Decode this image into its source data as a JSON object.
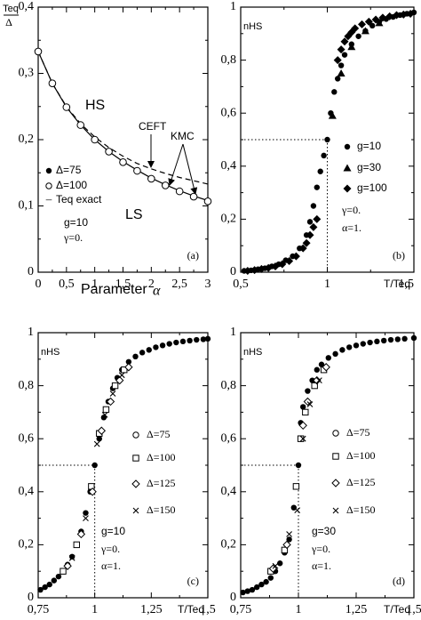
{
  "chart_data": [
    {
      "id": "a",
      "type": "line",
      "panel_letter": "(a)",
      "ylabel": "Teq/Δ",
      "ylabel_num": "Teq",
      "ylabel_den": "Δ",
      "xlabel": "Parameter α",
      "xlabel_text": "Parameter",
      "xlabel_sym": "α",
      "xlim": [
        0,
        3
      ],
      "ylim": [
        0,
        0.4
      ],
      "xticks": [
        0,
        0.5,
        1,
        1.5,
        2,
        2.5,
        3
      ],
      "xtick_labels": [
        "0",
        "0,5",
        "1",
        "1,5",
        "2",
        "2,5",
        "3"
      ],
      "yticks": [
        0,
        0.1,
        0.2,
        0.3,
        0.4
      ],
      "ytick_labels": [
        "0",
        "0,1",
        "0,2",
        "0,3",
        "0,4"
      ],
      "region_labels": [
        "HS",
        "LS"
      ],
      "annotations": [
        "CEFT",
        "KMC"
      ],
      "params": [
        "g=10",
        "γ=0."
      ],
      "legend": [
        {
          "symbol": "filled-circle",
          "label": "Δ=75"
        },
        {
          "symbol": "open-circle",
          "label": "Δ=100"
        },
        {
          "symbol": "dash",
          "label": "Teq exact"
        }
      ],
      "series": [
        {
          "name": "Teq exact",
          "style": "dashed",
          "x": [
            0,
            0.25,
            0.5,
            0.75,
            1.0,
            1.25,
            1.5,
            1.75,
            2.0,
            2.25,
            2.5,
            2.75,
            3.0
          ],
          "y": [
            0.333,
            0.285,
            0.25,
            0.224,
            0.204,
            0.188,
            0.175,
            0.164,
            0.156,
            0.149,
            0.143,
            0.138,
            0.133
          ]
        },
        {
          "name": "CEFT",
          "style": "solid",
          "x": [
            0,
            0.25,
            0.5,
            0.75,
            1.0,
            1.25,
            1.5,
            1.75,
            2.0,
            2.25,
            2.5,
            2.75,
            3.0
          ],
          "y": [
            0.333,
            0.285,
            0.249,
            0.222,
            0.2,
            0.182,
            0.167,
            0.154,
            0.142,
            0.132,
            0.123,
            0.115,
            0.108
          ]
        },
        {
          "name": "Δ=75",
          "marker": "filled-circle",
          "x": [
            0,
            0.25,
            0.5,
            0.75,
            1.0,
            1.25,
            1.5,
            1.75,
            2.0,
            2.25,
            2.5,
            2.75,
            3.0
          ],
          "y": [
            0.333,
            0.285,
            0.249,
            0.222,
            0.2,
            0.182,
            0.166,
            0.153,
            0.141,
            0.131,
            0.122,
            0.114,
            0.107
          ]
        },
        {
          "name": "Δ=100",
          "marker": "open-circle",
          "x": [
            0,
            0.25,
            0.5,
            0.75,
            1.0,
            1.25,
            1.5,
            1.75,
            2.0,
            2.25,
            2.5,
            2.75,
            3.0
          ],
          "y": [
            0.333,
            0.285,
            0.249,
            0.222,
            0.2,
            0.182,
            0.166,
            0.153,
            0.141,
            0.131,
            0.122,
            0.114,
            0.107
          ]
        }
      ]
    },
    {
      "id": "b",
      "type": "scatter",
      "panel_letter": "(b)",
      "ylabel": "nHS",
      "xlabel": "T/Teq",
      "xlim": [
        0.5,
        1.5
      ],
      "ylim": [
        0,
        1
      ],
      "xticks": [
        0.5,
        1,
        1.5
      ],
      "xtick_labels": [
        "0,5",
        "1",
        "1,5"
      ],
      "yticks": [
        0,
        0.2,
        0.4,
        0.6,
        0.8,
        1
      ],
      "ytick_labels": [
        "0",
        "0,2",
        "0,4",
        "0,6",
        "0,8",
        "1"
      ],
      "ref_point": [
        1,
        0.5
      ],
      "params": [
        "γ=0.",
        "α=1."
      ],
      "legend": [
        {
          "symbol": "filled-circle",
          "label": "g=10"
        },
        {
          "symbol": "filled-triangle",
          "label": "g=30"
        },
        {
          "symbol": "filled-diamond",
          "label": "g=100"
        }
      ],
      "series": [
        {
          "name": "g=10",
          "marker": "filled-circle",
          "x": [
            0.52,
            0.56,
            0.6,
            0.64,
            0.68,
            0.72,
            0.76,
            0.8,
            0.84,
            0.88,
            0.9,
            0.92,
            0.94,
            0.96,
            0.98,
            1.0,
            1.02,
            1.04,
            1.06,
            1.08,
            1.1,
            1.14,
            1.18,
            1.22,
            1.26,
            1.3,
            1.34,
            1.38,
            1.42,
            1.46,
            1.5
          ],
          "y": [
            0.005,
            0.007,
            0.011,
            0.015,
            0.022,
            0.03,
            0.045,
            0.06,
            0.09,
            0.14,
            0.19,
            0.25,
            0.32,
            0.38,
            0.44,
            0.5,
            0.6,
            0.68,
            0.73,
            0.78,
            0.82,
            0.86,
            0.89,
            0.91,
            0.93,
            0.945,
            0.955,
            0.963,
            0.97,
            0.975,
            0.98
          ]
        },
        {
          "name": "g=30",
          "marker": "filled-triangle",
          "x": [
            1.03,
            1.08,
            1.14,
            1.22,
            1.3
          ],
          "y": [
            0.59,
            0.75,
            0.85,
            0.91,
            0.94
          ]
        },
        {
          "name": "g=100",
          "marker": "filled-diamond",
          "x": [
            0.54,
            0.58,
            0.62,
            0.66,
            0.7,
            0.74,
            0.78,
            0.82,
            0.86,
            0.88,
            0.9,
            0.92,
            0.94,
            1.06,
            1.08,
            1.1,
            1.12,
            1.14,
            1.16,
            1.2,
            1.24,
            1.28,
            1.32,
            1.36,
            1.4,
            1.44,
            1.48
          ],
          "y": [
            0.005,
            0.008,
            0.012,
            0.016,
            0.022,
            0.03,
            0.042,
            0.06,
            0.09,
            0.11,
            0.14,
            0.17,
            0.2,
            0.8,
            0.84,
            0.87,
            0.89,
            0.905,
            0.92,
            0.935,
            0.945,
            0.953,
            0.96,
            0.965,
            0.97,
            0.972,
            0.975
          ]
        }
      ]
    },
    {
      "id": "c",
      "type": "scatter",
      "panel_letter": "(c)",
      "ylabel": "nHS",
      "xlabel": "T/Teq",
      "xlim": [
        0.75,
        1.5
      ],
      "ylim": [
        0,
        1
      ],
      "xticks": [
        0.75,
        1,
        1.25,
        1.5
      ],
      "xtick_labels": [
        "0,75",
        "1",
        "1,25",
        "1,5"
      ],
      "yticks": [
        0,
        0.2,
        0.4,
        0.6,
        0.8,
        1
      ],
      "ytick_labels": [
        "0",
        "0,2",
        "0,4",
        "0,6",
        "0,8",
        "1"
      ],
      "ref_point": [
        1,
        0.5
      ],
      "params": [
        "g=10",
        "γ=0.",
        "α=1."
      ],
      "legend": [
        {
          "symbol": "open-circle",
          "label": "Δ=75"
        },
        {
          "symbol": "open-square",
          "label": "Δ=100"
        },
        {
          "symbol": "open-diamond",
          "label": "Δ=125"
        },
        {
          "symbol": "cross",
          "label": "Δ=150"
        }
      ],
      "series": [
        {
          "name": "Δ=75",
          "marker": "filled-circle",
          "x": [
            0.76,
            0.78,
            0.8,
            0.82,
            0.84,
            0.86,
            0.88,
            0.9,
            0.92,
            0.94,
            0.96,
            0.98,
            1.0,
            1.02,
            1.04,
            1.06,
            1.08,
            1.1,
            1.12,
            1.15,
            1.18,
            1.21,
            1.24,
            1.27,
            1.3,
            1.33,
            1.36,
            1.39,
            1.42,
            1.45,
            1.48,
            1.5
          ],
          "y": [
            0.03,
            0.04,
            0.05,
            0.065,
            0.08,
            0.1,
            0.125,
            0.155,
            0.2,
            0.25,
            0.32,
            0.4,
            0.5,
            0.6,
            0.68,
            0.74,
            0.79,
            0.83,
            0.86,
            0.89,
            0.91,
            0.925,
            0.935,
            0.945,
            0.952,
            0.958,
            0.963,
            0.967,
            0.97,
            0.973,
            0.975,
            0.977
          ]
        },
        {
          "name": "Δ=100",
          "marker": "open-square",
          "x": [
            0.86,
            0.92,
            0.985,
            1.02,
            1.05,
            1.09,
            1.13
          ],
          "y": [
            0.1,
            0.2,
            0.42,
            0.62,
            0.71,
            0.8,
            0.86
          ]
        },
        {
          "name": "Δ=125",
          "marker": "open-diamond",
          "x": [
            0.88,
            0.94,
            0.99,
            1.03,
            1.07,
            1.11,
            1.15
          ],
          "y": [
            0.12,
            0.24,
            0.4,
            0.63,
            0.74,
            0.82,
            0.87
          ]
        },
        {
          "name": "Δ=150",
          "marker": "cross",
          "x": [
            0.9,
            0.96,
            1.01,
            1.045,
            1.08,
            1.12
          ],
          "y": [
            0.15,
            0.3,
            0.58,
            0.69,
            0.77,
            0.84
          ]
        }
      ]
    },
    {
      "id": "d",
      "type": "scatter",
      "panel_letter": "(d)",
      "ylabel": "nHS",
      "xlabel": "T/Teq",
      "xlim": [
        0.75,
        1.5
      ],
      "ylim": [
        0,
        1
      ],
      "xticks": [
        0.75,
        1,
        1.25,
        1.5
      ],
      "xtick_labels": [
        "0,75",
        "1",
        "1,25",
        "1,5"
      ],
      "yticks": [
        0,
        0.2,
        0.4,
        0.6,
        0.8,
        1
      ],
      "ytick_labels": [
        "0",
        "0,2",
        "0,4",
        "0,6",
        "0,8",
        "1"
      ],
      "ref_point": [
        1,
        0.5
      ],
      "params": [
        "g=30",
        "γ=0.",
        "α=1."
      ],
      "legend": [
        {
          "symbol": "open-circle",
          "label": "Δ=75"
        },
        {
          "symbol": "open-square",
          "label": "Δ=100"
        },
        {
          "symbol": "open-diamond",
          "label": "Δ=125"
        },
        {
          "symbol": "cross",
          "label": "Δ=150"
        }
      ],
      "series": [
        {
          "name": "Δ=75",
          "marker": "filled-circle",
          "x": [
            0.76,
            0.78,
            0.8,
            0.82,
            0.84,
            0.86,
            0.88,
            0.9,
            0.92,
            0.94,
            0.96,
            0.98,
            1.0,
            1.01,
            1.02,
            1.04,
            1.06,
            1.08,
            1.1,
            1.13,
            1.16,
            1.19,
            1.22,
            1.25,
            1.28,
            1.31,
            1.34,
            1.37,
            1.4,
            1.43,
            1.46,
            1.5
          ],
          "y": [
            0.02,
            0.025,
            0.03,
            0.04,
            0.05,
            0.06,
            0.075,
            0.1,
            0.13,
            0.17,
            0.22,
            0.34,
            0.5,
            0.66,
            0.72,
            0.78,
            0.82,
            0.86,
            0.88,
            0.905,
            0.92,
            0.935,
            0.945,
            0.952,
            0.958,
            0.963,
            0.967,
            0.97,
            0.973,
            0.975,
            0.977,
            0.98
          ]
        },
        {
          "name": "Δ=100",
          "marker": "open-square",
          "x": [
            0.88,
            0.94,
            0.99,
            1.01,
            1.03,
            1.07,
            1.11
          ],
          "y": [
            0.1,
            0.18,
            0.42,
            0.6,
            0.7,
            0.8,
            0.86
          ]
        },
        {
          "name": "Δ=125",
          "marker": "open-diamond",
          "x": [
            0.89,
            0.95,
            1.02,
            1.04,
            1.08,
            1.12
          ],
          "y": [
            0.11,
            0.2,
            0.65,
            0.74,
            0.82,
            0.87
          ]
        },
        {
          "name": "Δ=150",
          "marker": "cross",
          "x": [
            0.9,
            0.96,
            0.995,
            1.02,
            1.05,
            1.09
          ],
          "y": [
            0.12,
            0.24,
            0.33,
            0.6,
            0.73,
            0.82
          ]
        }
      ]
    }
  ]
}
